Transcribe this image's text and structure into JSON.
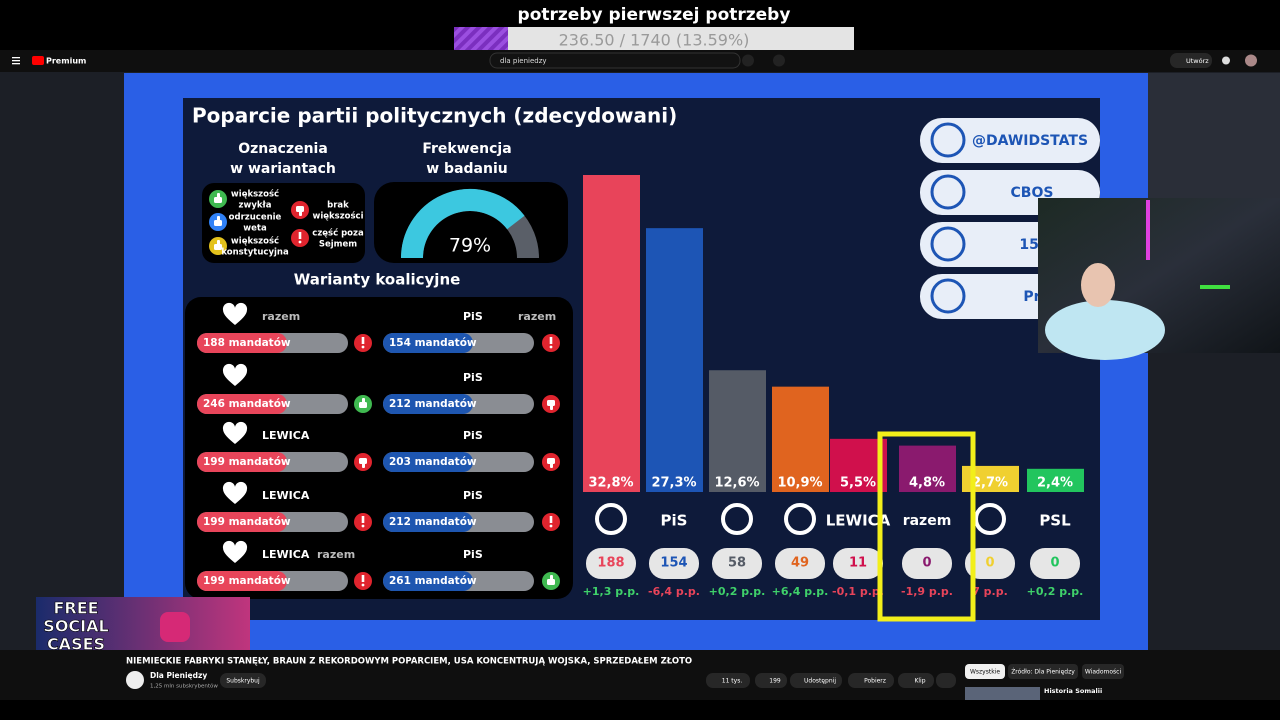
{
  "goal": {
    "title": "potrzeby pierwszej potrzeby",
    "progress": "236.50 / 1740 (13.59%)"
  },
  "header": {
    "brand": "Premium",
    "search": "dla pieniedzy",
    "create": "Utwórz"
  },
  "slide": {
    "title": "Poparcie partii politycznych (zdecydowani)",
    "legend_heading": [
      "Oznaczenia",
      "w wariantach"
    ],
    "legend": [
      {
        "lines": [
          "większość",
          "zwykła"
        ],
        "icon": "up",
        "color": "#3fb950"
      },
      {
        "lines": [
          "odrzucenie",
          "weta"
        ],
        "icon": "up",
        "color": "#2f81f7"
      },
      {
        "lines": [
          "większość",
          "konstytucyjna"
        ],
        "icon": "up",
        "color": "#e3c21c"
      },
      {
        "lines": [
          "brak",
          "większości"
        ],
        "icon": "down",
        "color": "#e0242e"
      },
      {
        "lines": [
          "część poza",
          "Sejmem"
        ],
        "icon": "warning",
        "color": "#e0242e"
      }
    ],
    "turnout_heading": [
      "Frekwencja",
      "w badaniu"
    ],
    "turnout": {
      "value": 79,
      "label": "79%"
    },
    "coalitions_heading": "Warianty koalicyjne",
    "coalitions_left": [
      {
        "logos": [
          "razem"
        ],
        "seats": "188 mandatów",
        "status": "warning"
      },
      {
        "logos": [],
        "seats": "246 mandatów",
        "status": "up"
      },
      {
        "logos": [
          "LEWICA"
        ],
        "seats": "199 mandatów",
        "status": "down"
      },
      {
        "logos": [
          "LEWICA"
        ],
        "seats": "199 mandatów",
        "status": "warning"
      },
      {
        "logos": [
          "LEWICA",
          "razem"
        ],
        "seats": "199 mandatów",
        "status": "warning"
      }
    ],
    "coalitions_right": [
      {
        "logos": [
          "PiS",
          "razem"
        ],
        "seats": "154 mandatów",
        "status": "warning"
      },
      {
        "logos": [
          "PiS"
        ],
        "seats": "212 mandatów",
        "status": "down"
      },
      {
        "logos": [
          "PiS"
        ],
        "seats": "203 mandatów",
        "status": "down"
      },
      {
        "logos": [
          "PiS"
        ],
        "seats": "212 mandatów",
        "status": "warning"
      },
      {
        "logos": [
          "PiS"
        ],
        "seats": "261 mandatów",
        "status": "up"
      }
    ],
    "info": [
      "@DAWIDSTATS",
      "CBOS",
      "15-",
      "Pr"
    ]
  },
  "chart_data": {
    "type": "bar",
    "categories": [
      null,
      "PiS",
      null,
      null,
      "LEWICA",
      "razem",
      null,
      "PSL"
    ],
    "values": [
      32.8,
      27.3,
      12.6,
      10.9,
      5.5,
      4.8,
      2.7,
      2.4
    ],
    "value_labels": [
      "32,8%",
      "27,3%",
      "12,6%",
      "10,9%",
      "5,5%",
      "4,8%",
      "2,7%",
      "2,4%"
    ],
    "colors": [
      "#e8445a",
      "#1d55b5",
      "#555b66",
      "#e0641f",
      "#d0104c",
      "#8a1a6e",
      "#f0d030",
      "#22c55e"
    ],
    "seats": [
      188,
      154,
      58,
      49,
      11,
      0,
      0,
      0
    ],
    "changes": [
      "+1,3 p.p.",
      "-6,4 p.p.",
      "+0,2 p.p.",
      "+6,4 p.p.",
      "-0,1 p.p.",
      "-1,9 p.p.",
      "7 p.p.",
      "+0,2 p.p."
    ]
  },
  "promo": [
    "FREE",
    "SOCIAL",
    "CASES"
  ],
  "video": {
    "title": "NIEMIECKIE FABRYKI STANĘŁY, BRAUN Z REKORDOWYM POPARCIEM, USA KONCENTRUJĄ WOJSKA, SPRZEDAŁEM ZŁOTO",
    "channel": "Dla Pieniędzy",
    "subscribers": "1,25 mln subskrybentów",
    "subscribe": "Subskrybuj",
    "actions": [
      "11 tys.",
      "199",
      "Udostępnij",
      "Pobierz",
      "Klip"
    ],
    "chips": [
      "Wszystkie",
      "Źródło: Dla Pieniędzy",
      "Wiadomości"
    ],
    "next": "Historia Somalii"
  }
}
